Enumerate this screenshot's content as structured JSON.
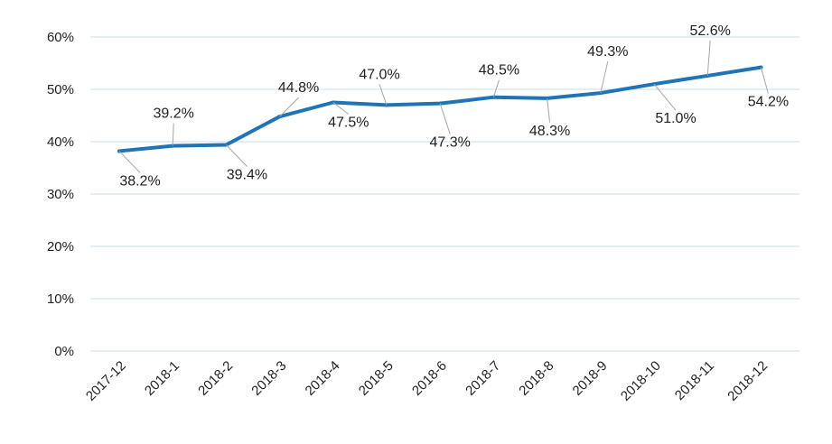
{
  "chart_data": {
    "type": "line",
    "categories": [
      "2017-12",
      "2018-1",
      "2018-2",
      "2018-3",
      "2018-4",
      "2018-5",
      "2018-6",
      "2018-7",
      "2018-8",
      "2018-9",
      "2018-10",
      "2018-11",
      "2018-12"
    ],
    "series": [
      {
        "values": [
          38.2,
          39.2,
          39.4,
          44.8,
          47.5,
          47.0,
          47.3,
          48.5,
          48.3,
          49.3,
          51.0,
          52.6,
          54.2
        ],
        "data_labels": [
          "38.2%",
          "39.2%",
          "39.4%",
          "44.8%",
          "47.5%",
          "47.0%",
          "47.3%",
          "48.5%",
          "48.3%",
          "49.3%",
          "51.0%",
          "52.6%",
          "54.2%"
        ],
        "color": "#1f73b7"
      }
    ],
    "yticks": [
      "0%",
      "10%",
      "20%",
      "30%",
      "40%",
      "50%",
      "60%"
    ],
    "ylim": [
      0,
      60
    ],
    "grid": true,
    "legend": "none",
    "title": "",
    "xlabel": "",
    "ylabel": ""
  }
}
